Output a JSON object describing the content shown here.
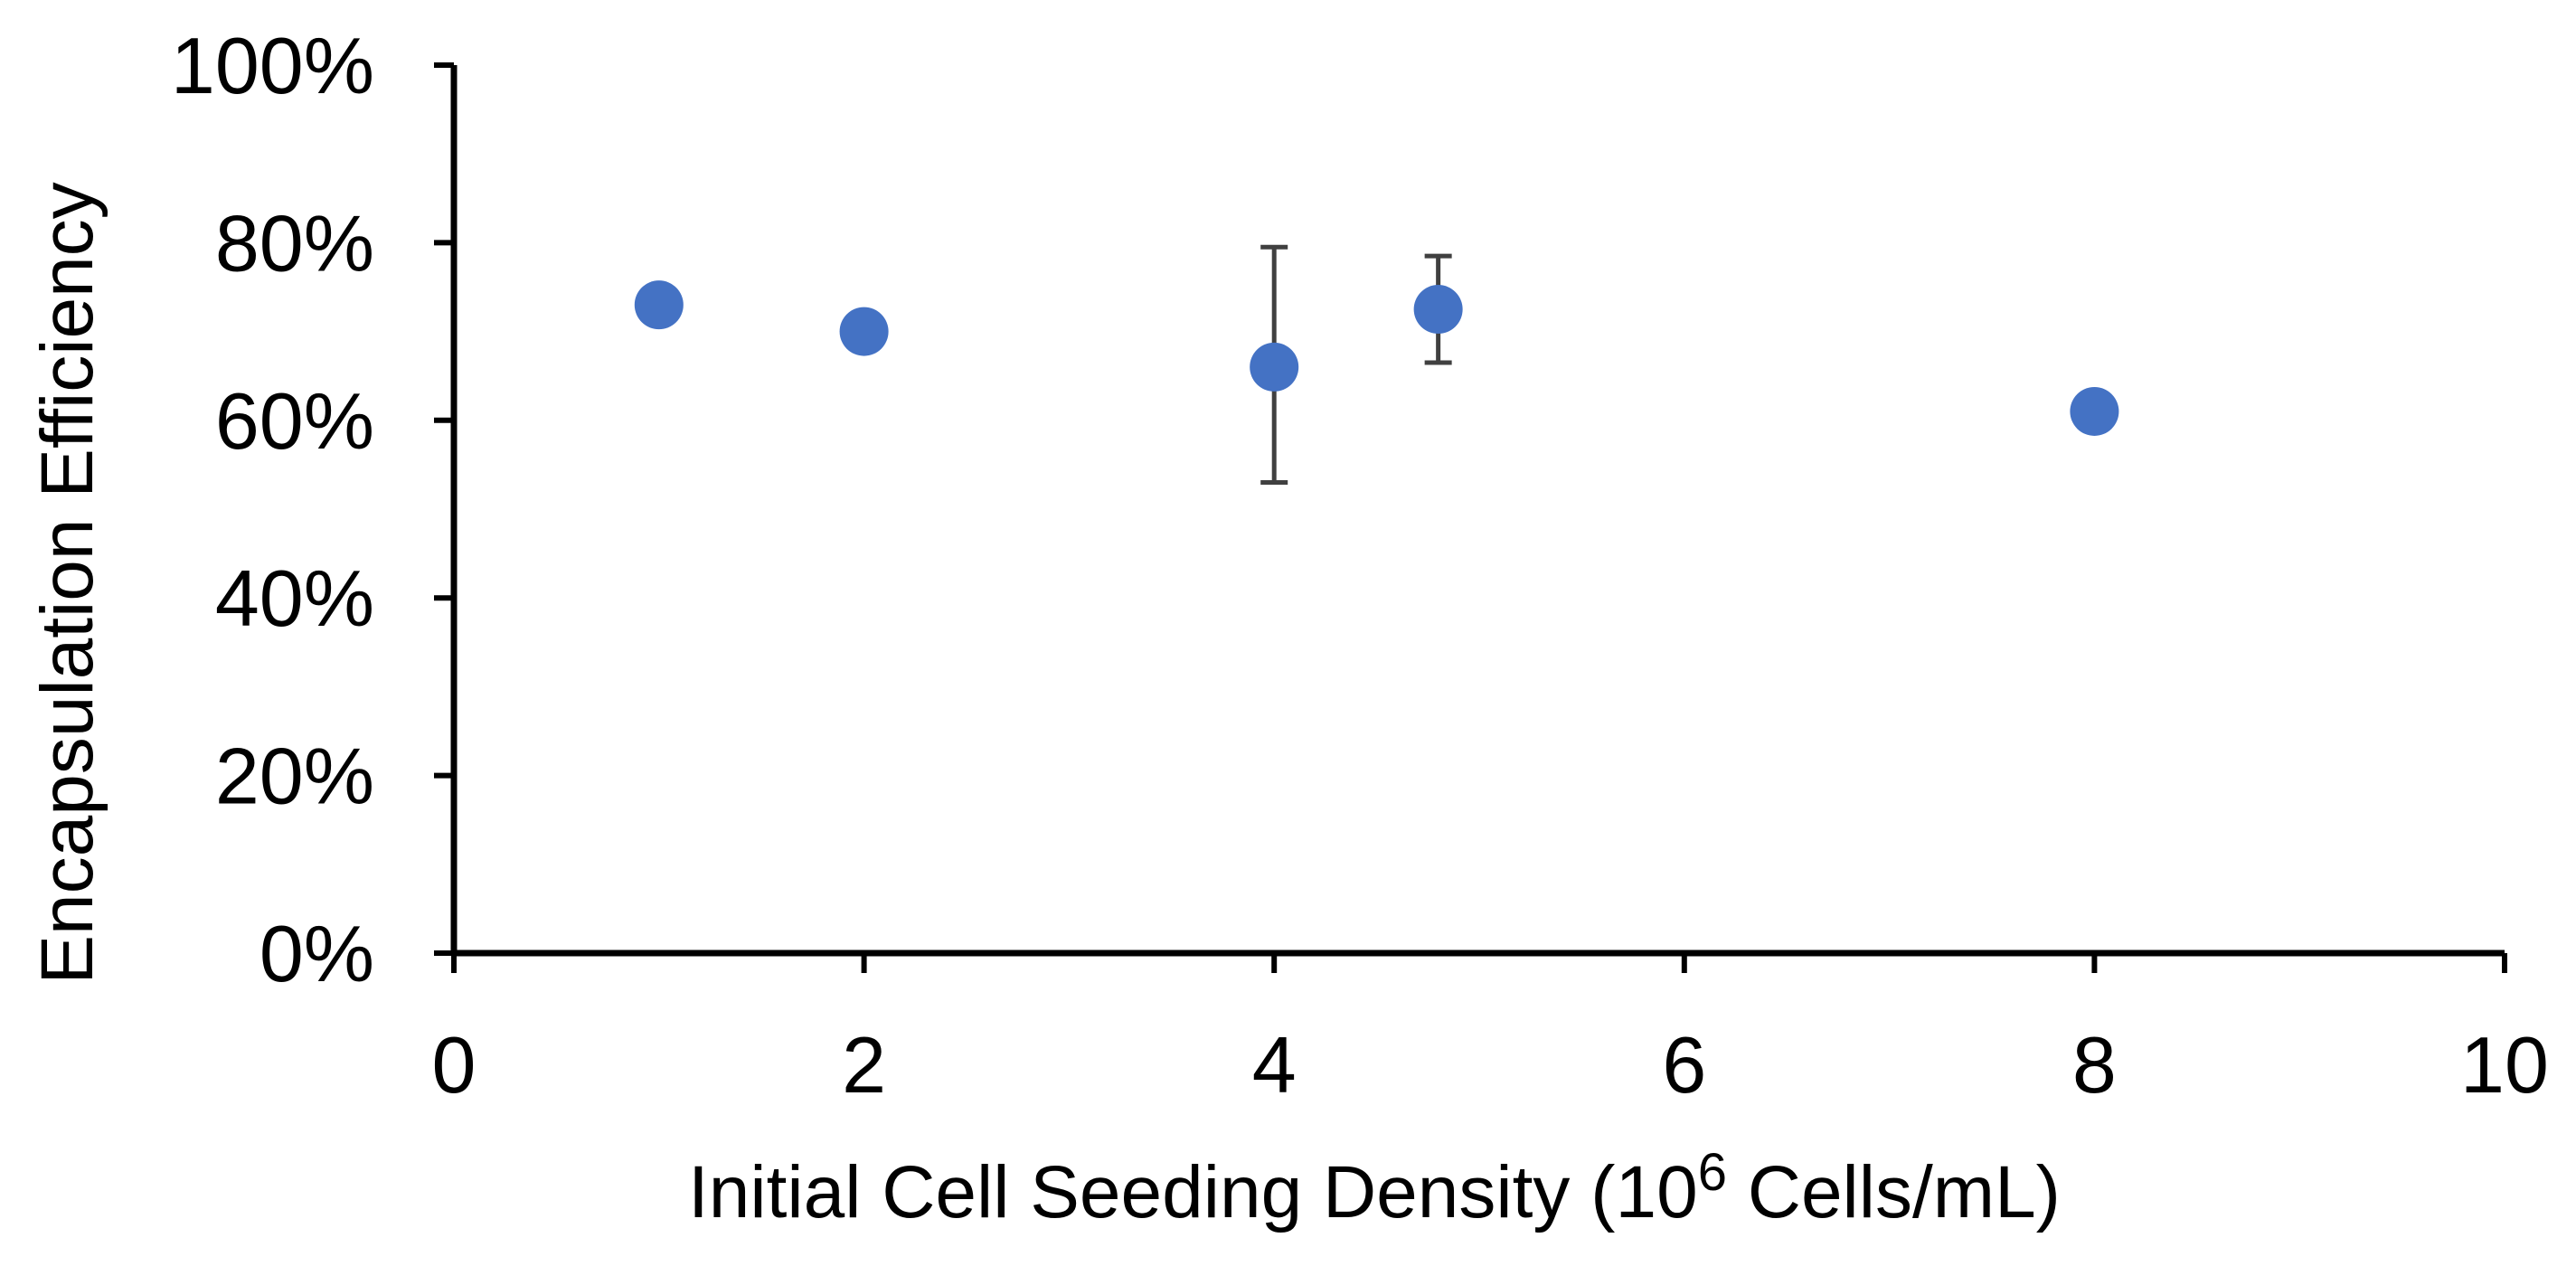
{
  "chart_data": {
    "type": "scatter",
    "title": "",
    "xlabel": {
      "prefix": "Initial Cell Seeding Density (10",
      "superscript": "6",
      "suffix": " Cells/mL)"
    },
    "ylabel": "Encapsulation Efficiency",
    "xlim": [
      0,
      10
    ],
    "ylim": [
      0,
      100
    ],
    "x_ticks": [
      0,
      2,
      4,
      6,
      8,
      10
    ],
    "x_tick_labels": [
      "0",
      "2",
      "4",
      "6",
      "8",
      "10"
    ],
    "y_ticks": [
      0,
      20,
      40,
      60,
      80,
      100
    ],
    "y_tick_labels": [
      "0%",
      "20%",
      "40%",
      "60%",
      "80%",
      "100%"
    ],
    "grid": false,
    "series": [
      {
        "name": "Encapsulation Efficiency",
        "color": "#4472C4",
        "points": [
          {
            "x": 1.0,
            "y": 73.0,
            "err": null
          },
          {
            "x": 2.0,
            "y": 70.0,
            "err": null
          },
          {
            "x": 4.0,
            "y": 66.0,
            "err": [
              53.0,
              79.5
            ]
          },
          {
            "x": 4.8,
            "y": 72.5,
            "err": [
              66.5,
              78.5
            ]
          },
          {
            "x": 8.0,
            "y": 61.0,
            "err": null
          }
        ]
      }
    ],
    "axis_color": "#000000",
    "errorbar_color": "#404040"
  }
}
